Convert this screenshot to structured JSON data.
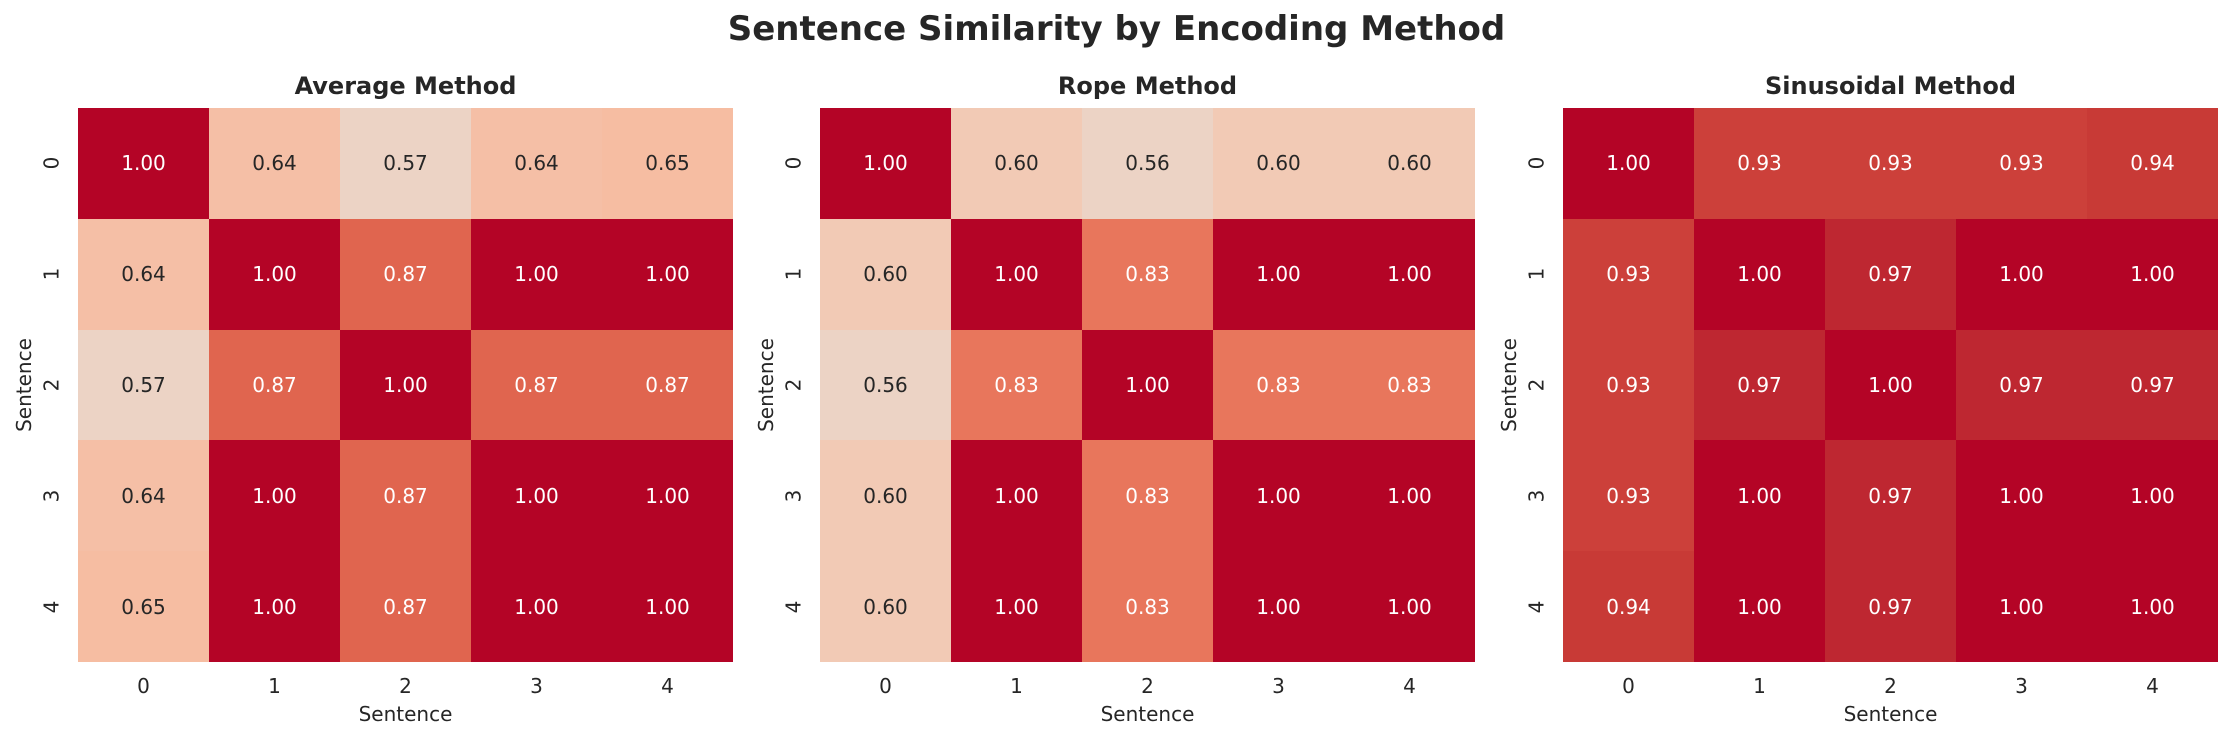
{
  "title": "Sentence Similarity by Encoding Method",
  "panels": [
    {
      "title": "Average Method",
      "xlabel": "Sentence",
      "ylabel": "Sentence",
      "xticks": [
        "0",
        "1",
        "2",
        "3",
        "4"
      ],
      "yticks": [
        "0",
        "1",
        "2",
        "3",
        "4"
      ],
      "matrix": [
        [
          1.0,
          0.64,
          0.57,
          0.64,
          0.65
        ],
        [
          0.64,
          1.0,
          0.87,
          1.0,
          1.0
        ],
        [
          0.57,
          0.87,
          1.0,
          0.87,
          0.87
        ],
        [
          0.64,
          1.0,
          0.87,
          1.0,
          1.0
        ],
        [
          0.65,
          1.0,
          0.87,
          1.0,
          1.0
        ]
      ]
    },
    {
      "title": "Rope Method",
      "xlabel": "Sentence",
      "ylabel": "Sentence",
      "xticks": [
        "0",
        "1",
        "2",
        "3",
        "4"
      ],
      "yticks": [
        "0",
        "1",
        "2",
        "3",
        "4"
      ],
      "matrix": [
        [
          1.0,
          0.6,
          0.56,
          0.6,
          0.6
        ],
        [
          0.6,
          1.0,
          0.83,
          1.0,
          1.0
        ],
        [
          0.56,
          0.83,
          1.0,
          0.83,
          0.83
        ],
        [
          0.6,
          1.0,
          0.83,
          1.0,
          1.0
        ],
        [
          0.6,
          1.0,
          0.83,
          1.0,
          1.0
        ]
      ]
    },
    {
      "title": "Sinusoidal Method",
      "xlabel": "Sentence",
      "ylabel": "Sentence",
      "xticks": [
        "0",
        "1",
        "2",
        "3",
        "4"
      ],
      "yticks": [
        "0",
        "1",
        "2",
        "3",
        "4"
      ],
      "matrix": [
        [
          1.0,
          0.93,
          0.93,
          0.93,
          0.94
        ],
        [
          0.93,
          1.0,
          0.97,
          1.0,
          1.0
        ],
        [
          0.93,
          0.97,
          1.0,
          0.97,
          0.97
        ],
        [
          0.93,
          1.0,
          0.97,
          1.0,
          1.0
        ],
        [
          0.94,
          1.0,
          0.97,
          1.0,
          1.0
        ]
      ]
    }
  ],
  "colormap": {
    "name": "coolwarm",
    "vmin": 0,
    "vmax": 1,
    "colors": {
      "0.56": "#ecd3c5",
      "0.57": "#ecd3c5",
      "0.60": "#f2cab5",
      "0.64": "#f5bfa6",
      "0.65": "#f6bda2",
      "0.83": "#e8765c",
      "0.87": "#e0654f",
      "0.93": "#cc403a",
      "0.94": "#c83a36",
      "0.97": "#be2731",
      "1.00": "#b40426"
    },
    "text_dark": "#262626",
    "text_light": "#ffffff"
  },
  "chart_data": [
    {
      "type": "heatmap",
      "title": "Average Method",
      "suptitle": "Sentence Similarity by Encoding Method",
      "xlabel": "Sentence",
      "ylabel": "Sentence",
      "x": [
        0,
        1,
        2,
        3,
        4
      ],
      "y": [
        0,
        1,
        2,
        3,
        4
      ],
      "values": [
        [
          1.0,
          0.64,
          0.57,
          0.64,
          0.65
        ],
        [
          0.64,
          1.0,
          0.87,
          1.0,
          1.0
        ],
        [
          0.57,
          0.87,
          1.0,
          0.87,
          0.87
        ],
        [
          0.64,
          1.0,
          0.87,
          1.0,
          1.0
        ],
        [
          0.65,
          1.0,
          0.87,
          1.0,
          1.0
        ]
      ],
      "colormap": "coolwarm",
      "vmin": 0,
      "vmax": 1,
      "annot_fmt": ".2f",
      "colorbar": false
    },
    {
      "type": "heatmap",
      "title": "Rope Method",
      "xlabel": "Sentence",
      "ylabel": "Sentence",
      "x": [
        0,
        1,
        2,
        3,
        4
      ],
      "y": [
        0,
        1,
        2,
        3,
        4
      ],
      "values": [
        [
          1.0,
          0.6,
          0.56,
          0.6,
          0.6
        ],
        [
          0.6,
          1.0,
          0.83,
          1.0,
          1.0
        ],
        [
          0.56,
          0.83,
          1.0,
          0.83,
          0.83
        ],
        [
          0.6,
          1.0,
          0.83,
          1.0,
          1.0
        ],
        [
          0.6,
          1.0,
          0.83,
          1.0,
          1.0
        ]
      ],
      "colormap": "coolwarm",
      "vmin": 0,
      "vmax": 1,
      "annot_fmt": ".2f",
      "colorbar": false
    },
    {
      "type": "heatmap",
      "title": "Sinusoidal Method",
      "xlabel": "Sentence",
      "ylabel": "Sentence",
      "x": [
        0,
        1,
        2,
        3,
        4
      ],
      "y": [
        0,
        1,
        2,
        3,
        4
      ],
      "values": [
        [
          1.0,
          0.93,
          0.93,
          0.93,
          0.94
        ],
        [
          0.93,
          1.0,
          0.97,
          1.0,
          1.0
        ],
        [
          0.93,
          0.97,
          1.0,
          0.97,
          0.97
        ],
        [
          0.93,
          1.0,
          0.97,
          1.0,
          1.0
        ],
        [
          0.94,
          1.0,
          0.97,
          1.0,
          1.0
        ]
      ],
      "colormap": "coolwarm",
      "vmin": 0,
      "vmax": 1,
      "annot_fmt": ".2f",
      "colorbar": false
    }
  ]
}
